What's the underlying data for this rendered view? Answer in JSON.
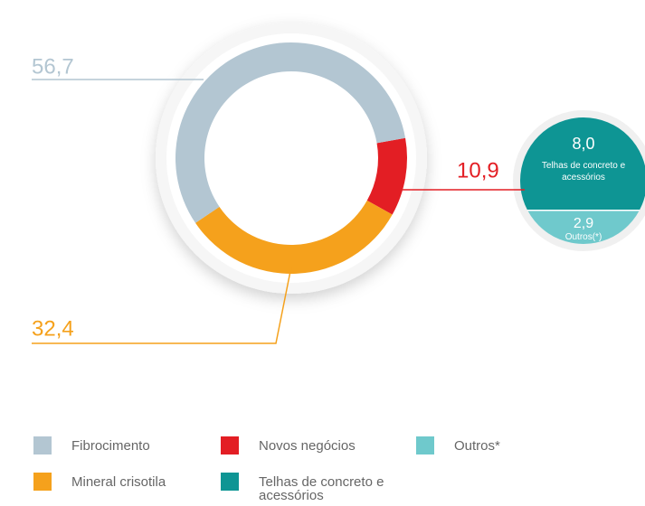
{
  "chart_data": {
    "type": "donut",
    "categories": [
      "Fibrocimento",
      "Mineral crisotila",
      "Novos negócios"
    ],
    "values": [
      56.7,
      32.4,
      10.9
    ],
    "value_labels": [
      "56,7",
      "32,4",
      "10,9"
    ],
    "colors": [
      "#b3c6d2",
      "#f5a11c",
      "#e31e24"
    ],
    "breakdown": {
      "categories": [
        "Telhas de concreto e acessórios",
        "Outros(*)"
      ],
      "values": [
        8.0,
        2.9
      ],
      "value_labels": [
        "8,0",
        "2,9"
      ],
      "colors": [
        "#0e9594",
        "#6fc9cc"
      ]
    },
    "legend": [
      {
        "label": "Fibrocimento",
        "color": "#b3c6d2"
      },
      {
        "label": "Novos negócios",
        "color": "#e31e24"
      },
      {
        "label": "Outros*",
        "color": "#6fc9cc"
      },
      {
        "label": "Mineral crisotila",
        "color": "#f5a11c"
      },
      {
        "label": "Telhas de concreto e acessórios",
        "color": "#0e9594"
      }
    ]
  }
}
